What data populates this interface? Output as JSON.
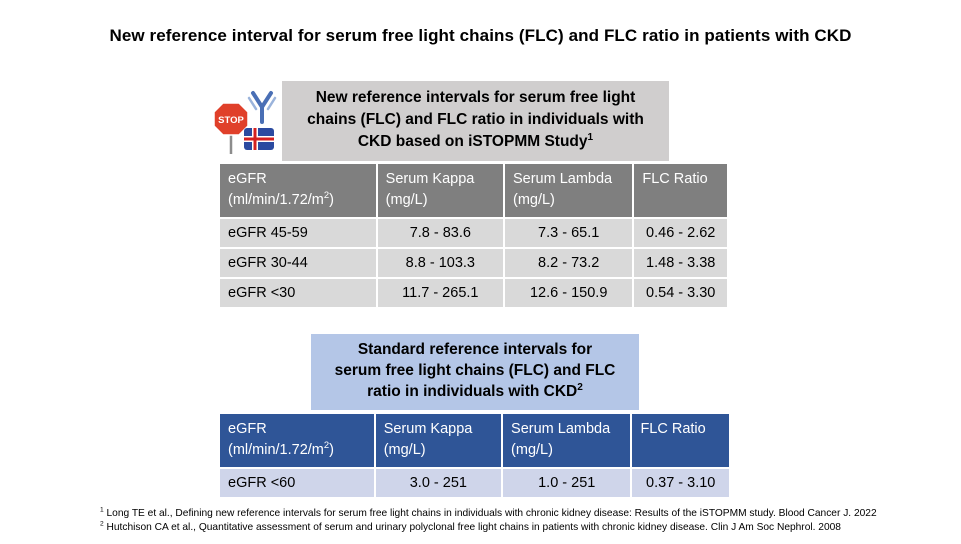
{
  "title": "New reference interval for serum free light chains (FLC) and FLC ratio in patients with CKD",
  "icons": {
    "stop_sign_text": "STOP",
    "colors": {
      "stop_red": "#e0402a",
      "antibody_blue": "#4a6fb5",
      "flag_blue": "#2b4aa0",
      "flag_red": "#d42020"
    }
  },
  "istopmm": {
    "heading_parts": [
      "New reference intervals for serum free light",
      "chains (FLC) and FLC ratio in individuals with",
      "CKD based on iSTOPMM Study"
    ],
    "heading_sup": "1",
    "columns": [
      {
        "line1": "eGFR",
        "line2_pre": "(ml/min/1.72/m",
        "line2_sup": "2",
        "line2_post": ")"
      },
      {
        "line1": "Serum Kappa",
        "line2_pre": "(mg/L)",
        "line2_sup": "",
        "line2_post": ""
      },
      {
        "line1": "Serum Lambda",
        "line2_pre": "(mg/L)",
        "line2_sup": "",
        "line2_post": ""
      },
      {
        "line1": "FLC Ratio",
        "line2_pre": "",
        "line2_sup": "",
        "line2_post": ""
      }
    ],
    "rows": [
      [
        "eGFR 45-59",
        "7.8 - 83.6",
        "7.3 - 65.1",
        "0.46 - 2.62"
      ],
      [
        "eGFR 30-44",
        "8.8 - 103.3",
        "8.2 - 73.2",
        "1.48 - 3.38"
      ],
      [
        "eGFR <30",
        "11.7 - 265.1",
        "12.6 - 150.9",
        "0.54 - 3.30"
      ]
    ],
    "colors": {
      "heading_bg": "#d0cece",
      "header_bg": "#7f7f7f",
      "row_bg": "#d9d9d9"
    }
  },
  "standard": {
    "heading_parts": [
      "Standard reference intervals for",
      "serum free light chains (FLC) and FLC",
      "ratio in individuals with CKD"
    ],
    "heading_sup": "2",
    "columns": [
      {
        "line1": "eGFR",
        "line2_pre": "(ml/min/1.72/m",
        "line2_sup": "2",
        "line2_post": ")"
      },
      {
        "line1": "Serum Kappa",
        "line2_pre": "(mg/L)",
        "line2_sup": "",
        "line2_post": ""
      },
      {
        "line1": "Serum Lambda",
        "line2_pre": "(mg/L)",
        "line2_sup": "",
        "line2_post": ""
      },
      {
        "line1": "FLC Ratio",
        "line2_pre": "",
        "line2_sup": "",
        "line2_post": ""
      }
    ],
    "rows": [
      [
        "eGFR <60",
        "3.0 - 251",
        "1.0 - 251",
        "0.37 - 3.10"
      ]
    ],
    "colors": {
      "heading_bg": "#b4c6e7",
      "header_bg": "#2f5597",
      "row_bg": "#cfd5ea"
    }
  },
  "footnotes": [
    {
      "num": "1",
      "text": " Long TE et al., Defining new reference intervals for serum free light chains in individuals with chronic kidney disease: Results of the iSTOPMM study. Blood Cancer J. 2022"
    },
    {
      "num": "2",
      "text": " Hutchison CA et al., Quantitative assessment of serum and urinary polyclonal free light chains in patients with chronic kidney disease. Clin J Am Soc Nephrol. 2008"
    }
  ]
}
